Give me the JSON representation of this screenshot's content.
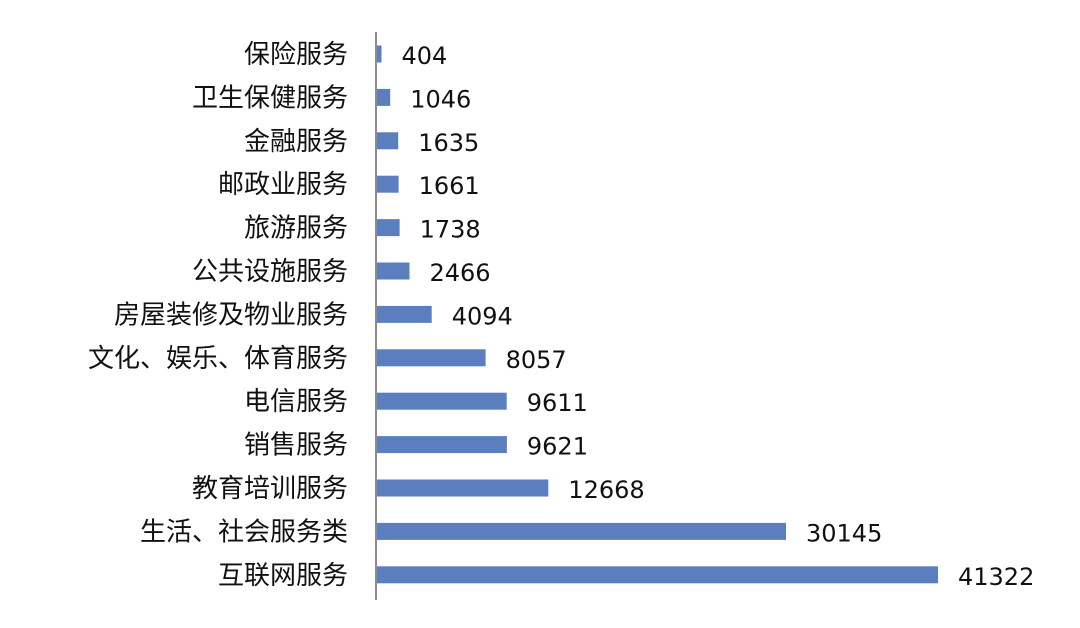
{
  "chart_data": {
    "type": "bar",
    "orientation": "horizontal",
    "categories": [
      "保险服务",
      "卫生保健服务",
      "金融服务",
      "邮政业服务",
      "旅游服务",
      "公共设施服务",
      "房屋装修及物业服务",
      "文化、娱乐、体育服务",
      "电信服务",
      "销售服务",
      "教育培训服务",
      "生活、社会服务类",
      "互联网服务"
    ],
    "values": [
      404,
      1046,
      1635,
      1661,
      1738,
      2466,
      4094,
      8057,
      9611,
      9621,
      12668,
      30145,
      41322
    ],
    "value_labels": [
      "404",
      "1046",
      "1635",
      "1661",
      "1738",
      "2466",
      "4094",
      "8057",
      "9611",
      "9621",
      "12668",
      "30145",
      "41322"
    ],
    "xlim": [
      0,
      41322
    ],
    "bar_color": "#5b7fbe",
    "axis_color": "#8c8c8c",
    "grid": false,
    "legend": "none",
    "title": "",
    "xlabel": "",
    "ylabel": ""
  }
}
